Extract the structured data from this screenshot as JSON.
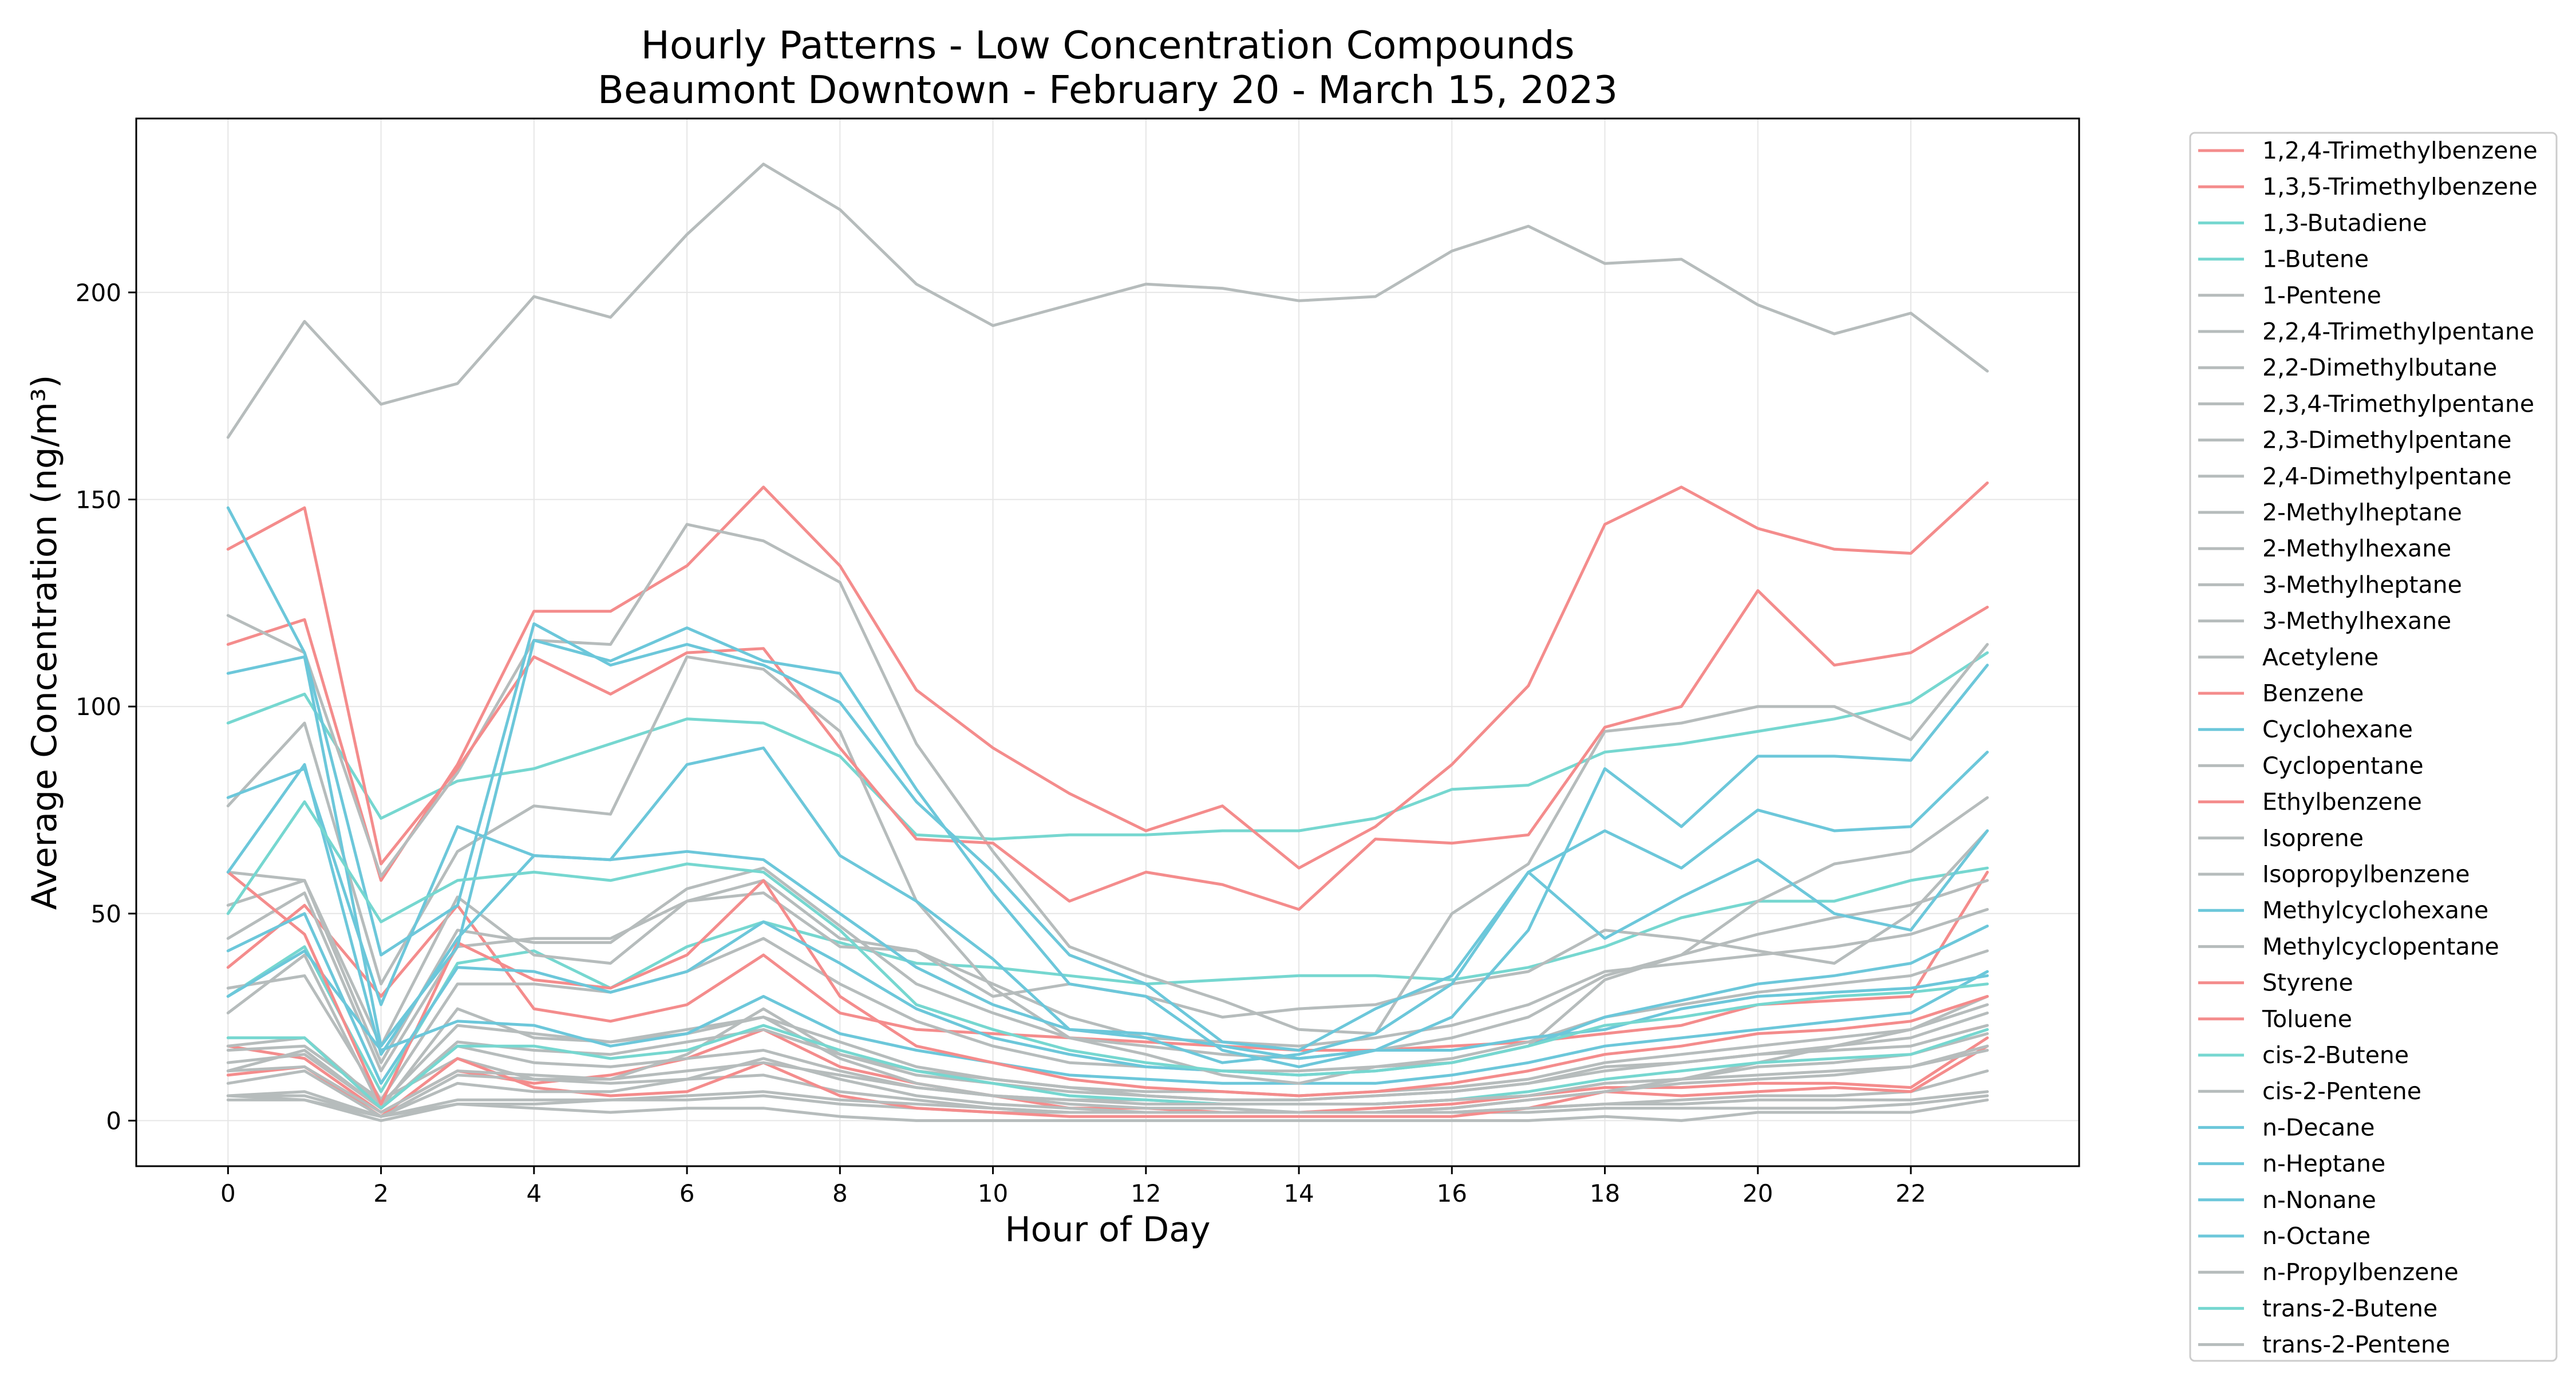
{
  "chart_data": {
    "type": "line",
    "title": "Hourly Patterns - Low Concentration Compounds",
    "subtitle": "Beaumont Downtown - February 20 - March 15, 2023",
    "xlabel": "Hour of Day",
    "ylabel": "Average Concentration (ng/m³)",
    "xlim": [
      -1.2,
      24.2
    ],
    "ylim": [
      -11,
      242
    ],
    "xticks": [
      0,
      2,
      4,
      6,
      8,
      10,
      12,
      14,
      16,
      18,
      20,
      22
    ],
    "yticks": [
      0,
      50,
      100,
      150,
      200
    ],
    "grid": true,
    "legend_position": "outside-right",
    "colors": {
      "red": "#f48c8c",
      "teal": "#76d7d0",
      "blue": "#6cc7da",
      "gray": "#b6bcbc",
      "axes": "#000000",
      "grid": "#e6e6e6"
    },
    "x": [
      0,
      1,
      2,
      3,
      4,
      5,
      6,
      7,
      8,
      9,
      10,
      11,
      12,
      13,
      14,
      15,
      16,
      17,
      18,
      19,
      20,
      21,
      22,
      23
    ],
    "series": [
      {
        "name": "1,2,4-Trimethylbenzene",
        "color": "#f48c8c",
        "values": [
          37,
          52,
          30,
          52,
          27,
          24,
          28,
          40,
          26,
          22,
          21,
          20,
          19,
          18,
          17,
          17,
          18,
          19,
          21,
          23,
          28,
          29,
          30,
          60
        ]
      },
      {
        "name": "1,3,5-Trimethylbenzene",
        "color": "#f48c8c",
        "values": [
          18,
          15,
          2,
          12,
          9,
          11,
          15,
          22,
          13,
          9,
          6,
          3,
          3,
          2,
          2,
          3,
          4,
          6,
          8,
          8,
          9,
          9,
          8,
          20
        ]
      },
      {
        "name": "1,3-Butadiene",
        "color": "#76d7d0",
        "values": [
          96,
          103,
          73,
          82,
          85,
          91,
          97,
          96,
          88,
          69,
          68,
          69,
          69,
          70,
          70,
          73,
          80,
          81,
          89,
          91,
          94,
          97,
          101,
          113
        ]
      },
      {
        "name": "1-Butene",
        "color": "#76d7d0",
        "values": [
          30,
          42,
          7,
          38,
          41,
          32,
          42,
          48,
          43,
          38,
          37,
          35,
          33,
          34,
          35,
          35,
          34,
          37,
          42,
          49,
          53,
          53,
          58,
          61
        ]
      },
      {
        "name": "1-Pentene",
        "color": "#b6bcbc",
        "values": [
          6,
          7,
          1,
          4,
          3,
          2,
          3,
          3,
          1,
          0,
          0,
          0,
          0,
          0,
          0,
          0,
          0,
          0,
          1,
          0,
          2,
          2,
          2,
          5
        ]
      },
      {
        "name": "2,2,4-Trimethylpentane",
        "color": "#b6bcbc",
        "values": [
          60,
          58,
          18,
          54,
          40,
          38,
          53,
          58,
          44,
          41,
          30,
          33,
          30,
          25,
          27,
          28,
          33,
          36,
          46,
          44,
          41,
          38,
          50,
          70
        ]
      },
      {
        "name": "2,2-Dimethylbutane",
        "color": "#b6bcbc",
        "values": [
          26,
          40,
          3,
          27,
          20,
          19,
          21,
          25,
          15,
          9,
          6,
          4,
          3,
          3,
          2,
          2,
          3,
          5,
          7,
          10,
          14,
          18,
          22,
          30
        ]
      },
      {
        "name": "2,3,4-Trimethylpentane",
        "color": "#b6bcbc",
        "values": [
          6,
          5,
          1,
          11,
          10,
          9,
          10,
          11,
          7,
          5,
          3,
          2,
          2,
          2,
          2,
          2,
          2,
          3,
          4,
          5,
          6,
          6,
          7,
          12
        ]
      },
      {
        "name": "2,3-Dimethylpentane",
        "color": "#b6bcbc",
        "values": [
          12,
          17,
          3,
          18,
          14,
          13,
          15,
          17,
          12,
          8,
          6,
          5,
          5,
          4,
          4,
          4,
          5,
          6,
          9,
          10,
          13,
          14,
          16,
          21
        ]
      },
      {
        "name": "2,4-Dimethylpentane",
        "color": "#b6bcbc",
        "values": [
          14,
          16,
          3,
          19,
          17,
          16,
          19,
          22,
          16,
          11,
          9,
          7,
          6,
          5,
          5,
          6,
          7,
          9,
          12,
          14,
          16,
          18,
          20,
          26
        ]
      },
      {
        "name": "2-Methylheptane",
        "color": "#b6bcbc",
        "values": [
          32,
          35,
          5,
          33,
          33,
          31,
          36,
          44,
          33,
          24,
          18,
          14,
          13,
          12,
          12,
          13,
          15,
          19,
          25,
          28,
          31,
          33,
          35,
          41
        ]
      },
      {
        "name": "2-Methylhexane",
        "color": "#b6bcbc",
        "values": [
          44,
          55,
          12,
          42,
          44,
          44,
          53,
          55,
          42,
          41,
          33,
          25,
          20,
          19,
          18,
          20,
          23,
          28,
          36,
          38,
          40,
          42,
          45,
          51
        ]
      },
      {
        "name": "3-Methylheptane",
        "color": "#b6bcbc",
        "values": [
          18,
          20,
          4,
          23,
          21,
          19,
          22,
          25,
          19,
          13,
          10,
          8,
          7,
          7,
          6,
          7,
          8,
          10,
          14,
          16,
          18,
          20,
          22,
          28
        ]
      },
      {
        "name": "3-Methylhexane",
        "color": "#b6bcbc",
        "values": [
          52,
          58,
          14,
          46,
          43,
          43,
          56,
          61,
          47,
          33,
          26,
          20,
          18,
          16,
          15,
          17,
          20,
          25,
          35,
          40,
          45,
          49,
          52,
          58
        ]
      },
      {
        "name": "Acetylene",
        "color": "#b6bcbc",
        "values": [
          165,
          193,
          173,
          178,
          199,
          194,
          214,
          231,
          220,
          202,
          192,
          197,
          202,
          201,
          198,
          199,
          210,
          216,
          207,
          208,
          197,
          190,
          195,
          181
        ]
      },
      {
        "name": "Benzene",
        "color": "#f48c8c",
        "values": [
          115,
          121,
          58,
          86,
          123,
          123,
          134,
          153,
          134,
          104,
          90,
          79,
          70,
          76,
          61,
          71,
          86,
          105,
          144,
          153,
          143,
          138,
          137,
          154
        ]
      },
      {
        "name": "Cyclohexane",
        "color": "#6cc7da",
        "values": [
          30,
          41,
          17,
          24,
          23,
          18,
          21,
          30,
          21,
          17,
          14,
          11,
          10,
          9,
          9,
          9,
          11,
          14,
          18,
          20,
          22,
          24,
          26,
          36
        ]
      },
      {
        "name": "Cyclopentane",
        "color": "#b6bcbc",
        "values": [
          17,
          18,
          5,
          15,
          10,
          10,
          16,
          27,
          16,
          12,
          10,
          8,
          6,
          5,
          5,
          6,
          7,
          9,
          13,
          14,
          16,
          17,
          18,
          23
        ]
      },
      {
        "name": "Ethylbenzene",
        "color": "#f48c8c",
        "values": [
          60,
          45,
          4,
          43,
          34,
          32,
          40,
          58,
          30,
          18,
          14,
          10,
          8,
          7,
          6,
          7,
          9,
          12,
          16,
          18,
          21,
          22,
          24,
          30
        ]
      },
      {
        "name": "Isoprene",
        "color": "#b6bcbc",
        "values": [
          122,
          113,
          59,
          84,
          116,
          115,
          144,
          140,
          130,
          91,
          65,
          42,
          35,
          29,
          22,
          21,
          50,
          62,
          94,
          96,
          100,
          100,
          92,
          115
        ]
      },
      {
        "name": "Isopropylbenzene",
        "color": "#b6bcbc",
        "values": [
          5,
          5,
          0,
          4,
          4,
          5,
          5,
          6,
          4,
          3,
          2,
          2,
          2,
          2,
          2,
          2,
          2,
          2,
          3,
          3,
          3,
          3,
          4,
          6
        ]
      },
      {
        "name": "Methylcyclohexane",
        "color": "#6cc7da",
        "values": [
          41,
          50,
          9,
          37,
          36,
          31,
          36,
          48,
          38,
          27,
          20,
          16,
          13,
          12,
          11,
          12,
          14,
          18,
          25,
          29,
          33,
          35,
          38,
          47
        ]
      },
      {
        "name": "Methylcyclopentane",
        "color": "#b6bcbc",
        "values": [
          76,
          96,
          33,
          65,
          76,
          74,
          112,
          109,
          94,
          53,
          32,
          20,
          16,
          11,
          9,
          13,
          14,
          18,
          34,
          40,
          53,
          62,
          65,
          78
        ]
      },
      {
        "name": "Styrene",
        "color": "#f48c8c",
        "values": [
          11,
          13,
          1,
          15,
          8,
          6,
          7,
          14,
          6,
          3,
          2,
          1,
          1,
          1,
          1,
          1,
          1,
          3,
          7,
          6,
          7,
          8,
          7,
          18
        ]
      },
      {
        "name": "Toluene",
        "color": "#f48c8c",
        "values": [
          138,
          148,
          62,
          85,
          112,
          103,
          113,
          114,
          90,
          68,
          67,
          53,
          60,
          57,
          51,
          68,
          67,
          69,
          95,
          100,
          128,
          110,
          113,
          124
        ]
      },
      {
        "name": "cis-2-Butene",
        "color": "#76d7d0",
        "values": [
          20,
          20,
          3,
          18,
          18,
          15,
          17,
          23,
          17,
          12,
          9,
          6,
          5,
          4,
          4,
          4,
          5,
          7,
          10,
          12,
          14,
          15,
          16,
          22
        ]
      },
      {
        "name": "cis-2-Pentene",
        "color": "#b6bcbc",
        "values": [
          6,
          6,
          1,
          5,
          5,
          5,
          6,
          7,
          5,
          4,
          3,
          2,
          2,
          2,
          2,
          2,
          2,
          3,
          4,
          4,
          5,
          5,
          5,
          7
        ]
      },
      {
        "name": "n-Decane",
        "color": "#6cc7da",
        "values": [
          108,
          112,
          18,
          42,
          116,
          111,
          119,
          111,
          108,
          80,
          55,
          33,
          30,
          17,
          13,
          17,
          25,
          46,
          85,
          71,
          88,
          88,
          87,
          110
        ]
      },
      {
        "name": "n-Heptane",
        "color": "#6cc7da",
        "values": [
          60,
          86,
          16,
          44,
          64,
          63,
          86,
          90,
          64,
          53,
          39,
          22,
          20,
          14,
          16,
          21,
          33,
          60,
          44,
          54,
          63,
          50,
          46,
          70
        ]
      },
      {
        "name": "n-Nonane",
        "color": "#6cc7da",
        "values": [
          148,
          113,
          40,
          52,
          120,
          110,
          115,
          110,
          101,
          77,
          60,
          40,
          33,
          19,
          17,
          27,
          35,
          60,
          70,
          61,
          75,
          70,
          71,
          89
        ]
      },
      {
        "name": "n-Octane",
        "color": "#6cc7da",
        "values": [
          78,
          85,
          28,
          71,
          64,
          63,
          65,
          63,
          50,
          37,
          28,
          22,
          21,
          18,
          15,
          17,
          17,
          20,
          22,
          27,
          30,
          31,
          32,
          35
        ]
      },
      {
        "name": "n-Propylbenzene",
        "color": "#b6bcbc",
        "values": [
          9,
          12,
          1,
          9,
          7,
          7,
          10,
          15,
          10,
          6,
          4,
          3,
          2,
          2,
          2,
          2,
          3,
          5,
          7,
          9,
          10,
          11,
          13,
          18
        ]
      },
      {
        "name": "trans-2-Butene",
        "color": "#76d7d0",
        "values": [
          50,
          77,
          48,
          58,
          60,
          58,
          62,
          60,
          46,
          28,
          22,
          17,
          14,
          12,
          11,
          12,
          14,
          18,
          23,
          25,
          28,
          30,
          31,
          33
        ]
      },
      {
        "name": "trans-2-Pentene",
        "color": "#b6bcbc",
        "values": [
          12,
          13,
          2,
          12,
          11,
          10,
          12,
          14,
          11,
          8,
          6,
          5,
          4,
          4,
          4,
          4,
          5,
          6,
          9,
          10,
          11,
          12,
          13,
          17
        ]
      }
    ]
  }
}
